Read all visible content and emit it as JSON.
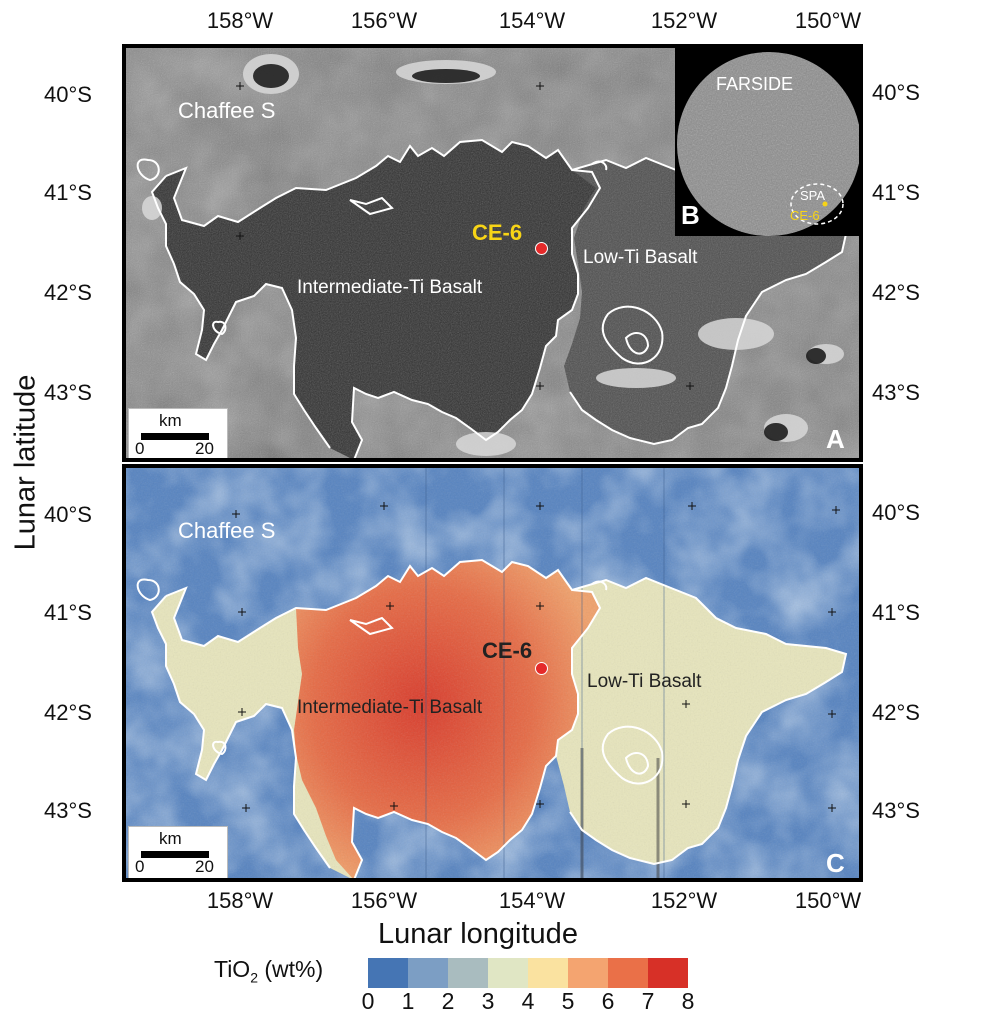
{
  "axes": {
    "x_title": "Lunar longitude",
    "y_title": "Lunar latitude",
    "longitudes": [
      "158°W",
      "156°W",
      "154°W",
      "152°W",
      "150°W"
    ],
    "latitudes": [
      "40°S",
      "41°S",
      "42°S",
      "43°S"
    ]
  },
  "panel_a": {
    "letter": "A",
    "site": "CE-6",
    "crater": "Chaffee S",
    "unit_intermediate": "Intermediate-Ti Basalt",
    "unit_low": "Low-Ti Basalt",
    "scale_unit": "km",
    "scale_start": "0",
    "scale_end": "20"
  },
  "panel_b": {
    "letter": "B",
    "title": "FARSIDE",
    "basin": "SPA",
    "site": "CE-6"
  },
  "panel_c": {
    "letter": "C",
    "site": "CE-6",
    "crater": "Chaffee S",
    "unit_intermediate": "Intermediate-Ti Basalt",
    "unit_low": "Low-Ti Basalt",
    "scale_unit": "km",
    "scale_start": "0",
    "scale_end": "20"
  },
  "legend": {
    "title_main": "TiO",
    "title_sub": "2",
    "title_suffix": " (wt%)",
    "ticks": [
      "0",
      "1",
      "2",
      "3",
      "4",
      "5",
      "6",
      "7",
      "8"
    ],
    "colors": [
      "#4575b4",
      "#7c9ec4",
      "#a9bcbf",
      "#e0e6c4",
      "#fae2a0",
      "#f4a470",
      "#ea7048",
      "#d73027"
    ]
  },
  "colors": {
    "low_ti": "#e8e4b6",
    "intermediate_ti": "#e0603f",
    "background_map": "#5a86c2",
    "site_marker": "#e52a2a",
    "site_label_a": "#f7d416"
  }
}
